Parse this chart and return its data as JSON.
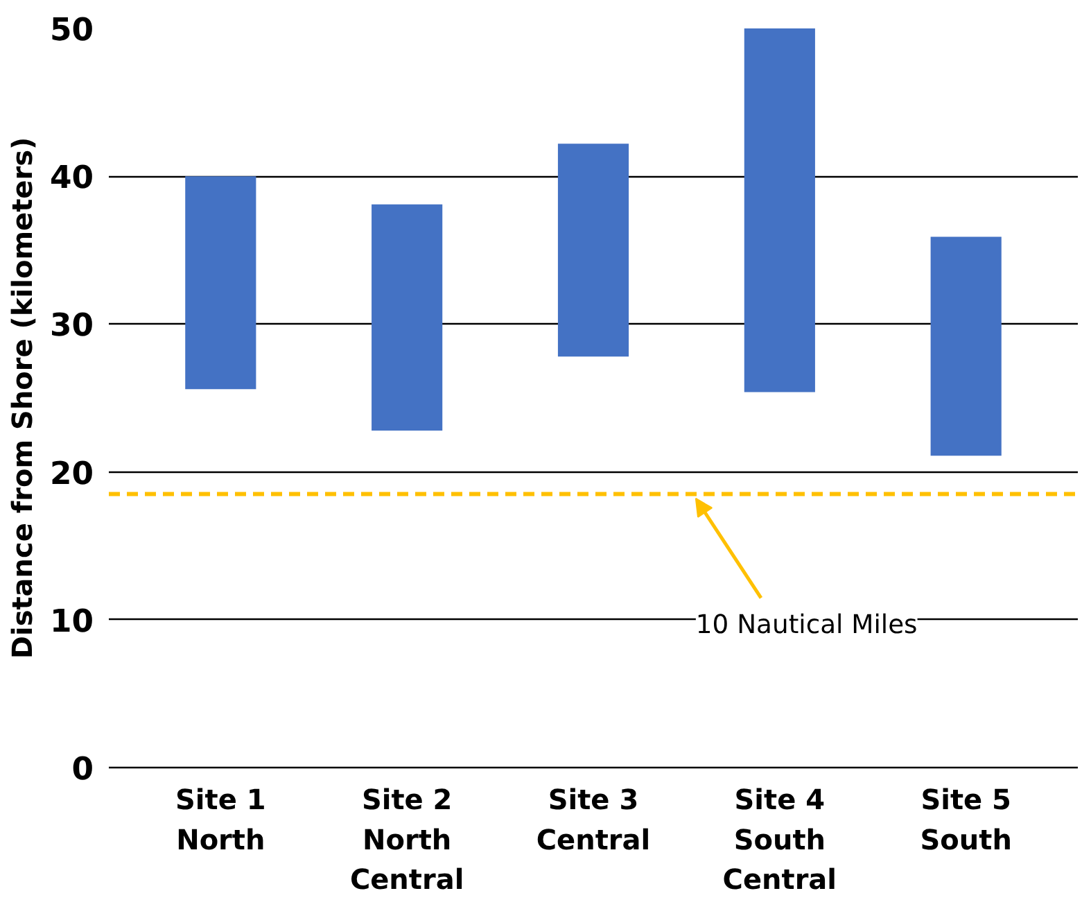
{
  "chart_data": {
    "type": "bar",
    "ylabel": "Distance from Shore (kilometers)",
    "categories": [
      "Site 1\nNorth",
      "Site 2\nNorth\nCentral",
      "Site 3\nCentral",
      "Site 4\nSouth\nCentral",
      "Site 5\nSouth"
    ],
    "values": [
      14.4,
      15.3,
      14.4,
      24.6,
      14.8
    ],
    "base": [
      25.6,
      22.8,
      27.8,
      25.4,
      21.1
    ],
    "color": "#4472c4",
    "ylim": [
      0,
      50
    ],
    "yticks": [
      0,
      10,
      20,
      30,
      40,
      50
    ],
    "grid": "y",
    "ref_lines": [
      {
        "axis": "y",
        "value": 18.5,
        "label": "10 Nautical Miles",
        "color": "#ffc000",
        "line_style": "dashed"
      }
    ]
  }
}
